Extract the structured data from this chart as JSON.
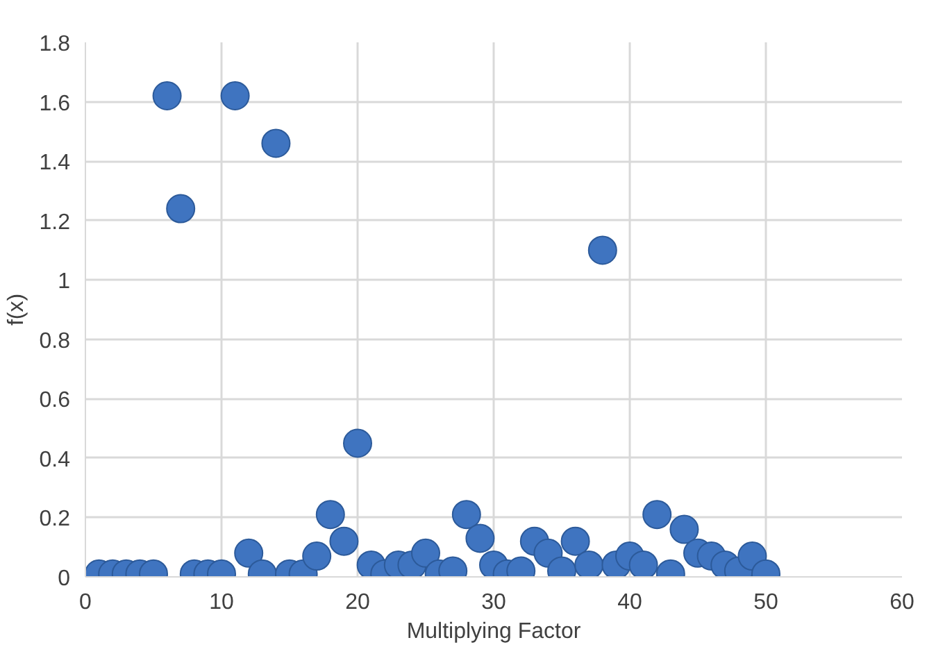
{
  "chart_data": {
    "type": "scatter",
    "xlabel": "Multiplying Factor",
    "ylabel": "f(x)",
    "x": [
      1,
      2,
      3,
      4,
      5,
      6,
      7,
      8,
      9,
      10,
      11,
      12,
      13,
      14,
      15,
      16,
      17,
      18,
      19,
      20,
      21,
      22,
      23,
      24,
      25,
      26,
      27,
      28,
      29,
      30,
      31,
      32,
      33,
      34,
      35,
      36,
      37,
      38,
      39,
      40,
      41,
      42,
      43,
      44,
      45,
      46,
      47,
      48,
      49,
      50
    ],
    "series": [
      {
        "color": "#3f74c0",
        "values": [
          0.01,
          0.01,
          0.01,
          0.01,
          0.01,
          1.62,
          1.24,
          0.01,
          0.01,
          0.01,
          1.62,
          0.08,
          0.01,
          1.46,
          0.01,
          0.01,
          0.07,
          0.21,
          0.12,
          0.45,
          0.04,
          0.01,
          0.04,
          0.04,
          0.08,
          0.01,
          0.02,
          0.21,
          0.13,
          0.04,
          0.01,
          0.02,
          0.12,
          0.08,
          0.02,
          0.12,
          0.04,
          1.1,
          0.04,
          0.07,
          0.04,
          0.21,
          0.01,
          0.16,
          0.08,
          0.07,
          0.04,
          0.02,
          0.07,
          0.01
        ]
      }
    ],
    "xlim": [
      0,
      60
    ],
    "xticks": [
      0,
      10,
      20,
      30,
      40,
      50,
      60
    ],
    "ylim": [
      0,
      1.8
    ],
    "yticks": [
      0,
      0.2,
      0.4,
      0.6,
      0.8,
      1,
      1.2,
      1.4,
      1.6,
      1.8
    ],
    "grid": true,
    "marker": "circle"
  }
}
